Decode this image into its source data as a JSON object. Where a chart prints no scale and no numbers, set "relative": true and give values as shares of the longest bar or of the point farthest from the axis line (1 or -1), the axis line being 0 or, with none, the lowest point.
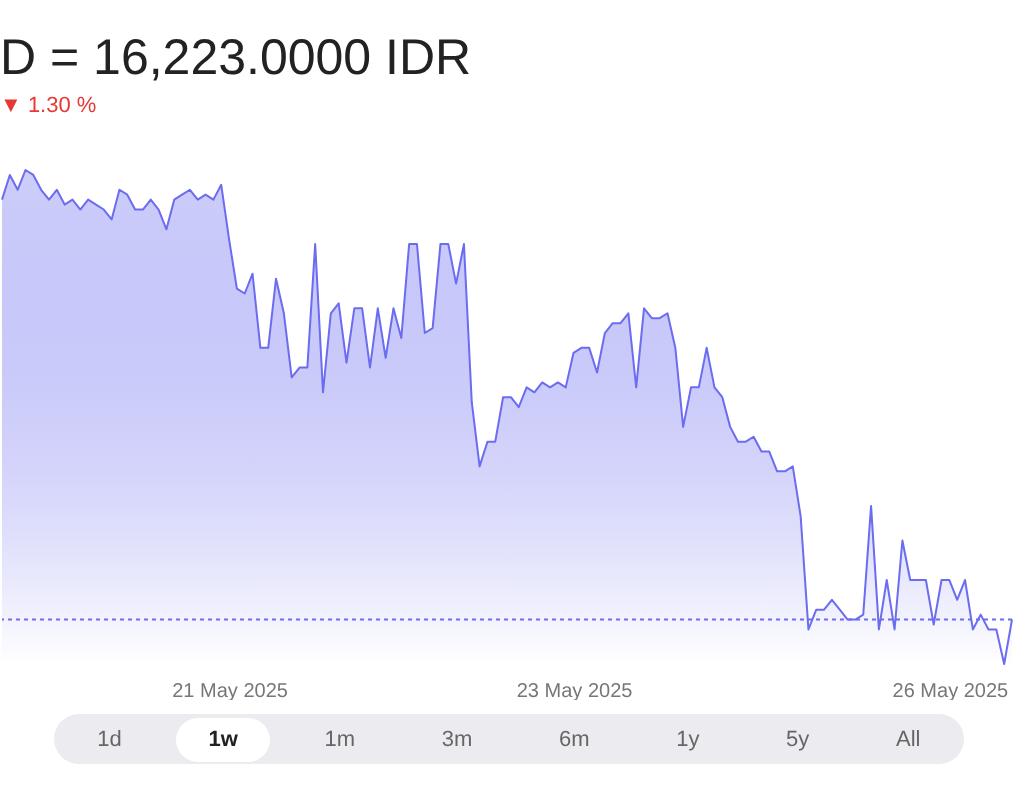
{
  "chart_data": {
    "type": "area",
    "title": "D = 16,223.0000 IDR",
    "subtitle": "▼ 1.30 %",
    "relative": true,
    "grid": false,
    "categories": [
      null,
      null,
      null,
      null,
      null,
      null,
      null,
      null,
      null,
      null,
      null,
      null,
      null,
      null,
      null,
      null,
      null,
      null,
      null,
      null,
      null,
      null,
      null,
      null,
      null,
      null,
      null,
      null,
      null,
      "21 May 2025",
      null,
      null,
      null,
      null,
      null,
      null,
      null,
      null,
      null,
      null,
      null,
      null,
      null,
      null,
      null,
      null,
      null,
      null,
      null,
      null,
      null,
      null,
      null,
      null,
      null,
      null,
      null,
      null,
      null,
      null,
      null,
      null,
      null,
      null,
      null,
      null,
      null,
      null,
      null,
      null,
      null,
      null,
      null,
      "23 May 2025",
      null,
      null,
      null,
      null,
      null,
      null,
      null,
      null,
      null,
      null,
      null,
      null,
      null,
      null,
      null,
      null,
      null,
      null,
      null,
      null,
      null,
      null,
      null,
      null,
      null,
      null,
      null,
      null,
      null,
      null,
      null,
      null,
      null,
      null,
      null,
      null,
      null,
      null,
      null,
      null,
      null,
      null,
      null,
      null,
      null,
      null,
      null,
      "26 May 2025",
      null,
      null,
      null,
      null,
      null,
      null,
      null,
      null
    ],
    "ref_lines": [
      {
        "axis": "y",
        "value": 0.09,
        "color": "#6b6cf0",
        "line_style": "dotted"
      }
    ],
    "annotations": [
      "1d",
      "1w",
      "1m",
      "3m",
      "6m",
      "1y",
      "5y",
      "All"
    ],
    "series": [
      {
        "color": "#6b6cf0",
        "values": [
          0.94,
          0.99,
          0.96,
          1,
          0.99,
          0.96,
          0.94,
          0.96,
          0.93,
          0.94,
          0.92,
          0.94,
          0.93,
          0.92,
          0.9,
          0.96,
          0.95,
          0.92,
          0.92,
          0.94,
          0.92,
          0.88,
          0.94,
          0.95,
          0.96,
          0.94,
          0.95,
          0.94,
          0.97,
          0.86,
          0.76,
          0.75,
          0.79,
          0.64,
          0.64,
          0.78,
          0.71,
          0.58,
          0.6,
          0.6,
          0.85,
          0.55,
          0.71,
          0.73,
          0.61,
          0.72,
          0.72,
          0.6,
          0.72,
          0.62,
          0.72,
          0.66,
          0.85,
          0.85,
          0.67,
          0.68,
          0.85,
          0.85,
          0.77,
          0.85,
          0.53,
          0.4,
          0.45,
          0.45,
          0.54,
          0.54,
          0.52,
          0.56,
          0.55,
          0.57,
          0.56,
          0.57,
          0.56,
          0.63,
          0.64,
          0.64,
          0.59,
          0.67,
          0.69,
          0.69,
          0.71,
          0.56,
          0.72,
          0.7,
          0.7,
          0.71,
          0.64,
          0.48,
          0.56,
          0.56,
          0.64,
          0.56,
          0.54,
          0.48,
          0.45,
          0.45,
          0.46,
          0.43,
          0.43,
          0.39,
          0.39,
          0.4,
          0.3,
          0.07,
          0.11,
          0.11,
          0.13,
          0.11,
          0.09,
          0.09,
          0.1,
          0.32,
          0.07,
          0.17,
          0.07,
          0.25,
          0.17,
          0.17,
          0.17,
          0.08,
          0.17,
          0.17,
          0.13,
          0.17,
          0.07,
          0.1,
          0.07,
          0.07,
          0,
          0.09
        ]
      }
    ]
  }
}
